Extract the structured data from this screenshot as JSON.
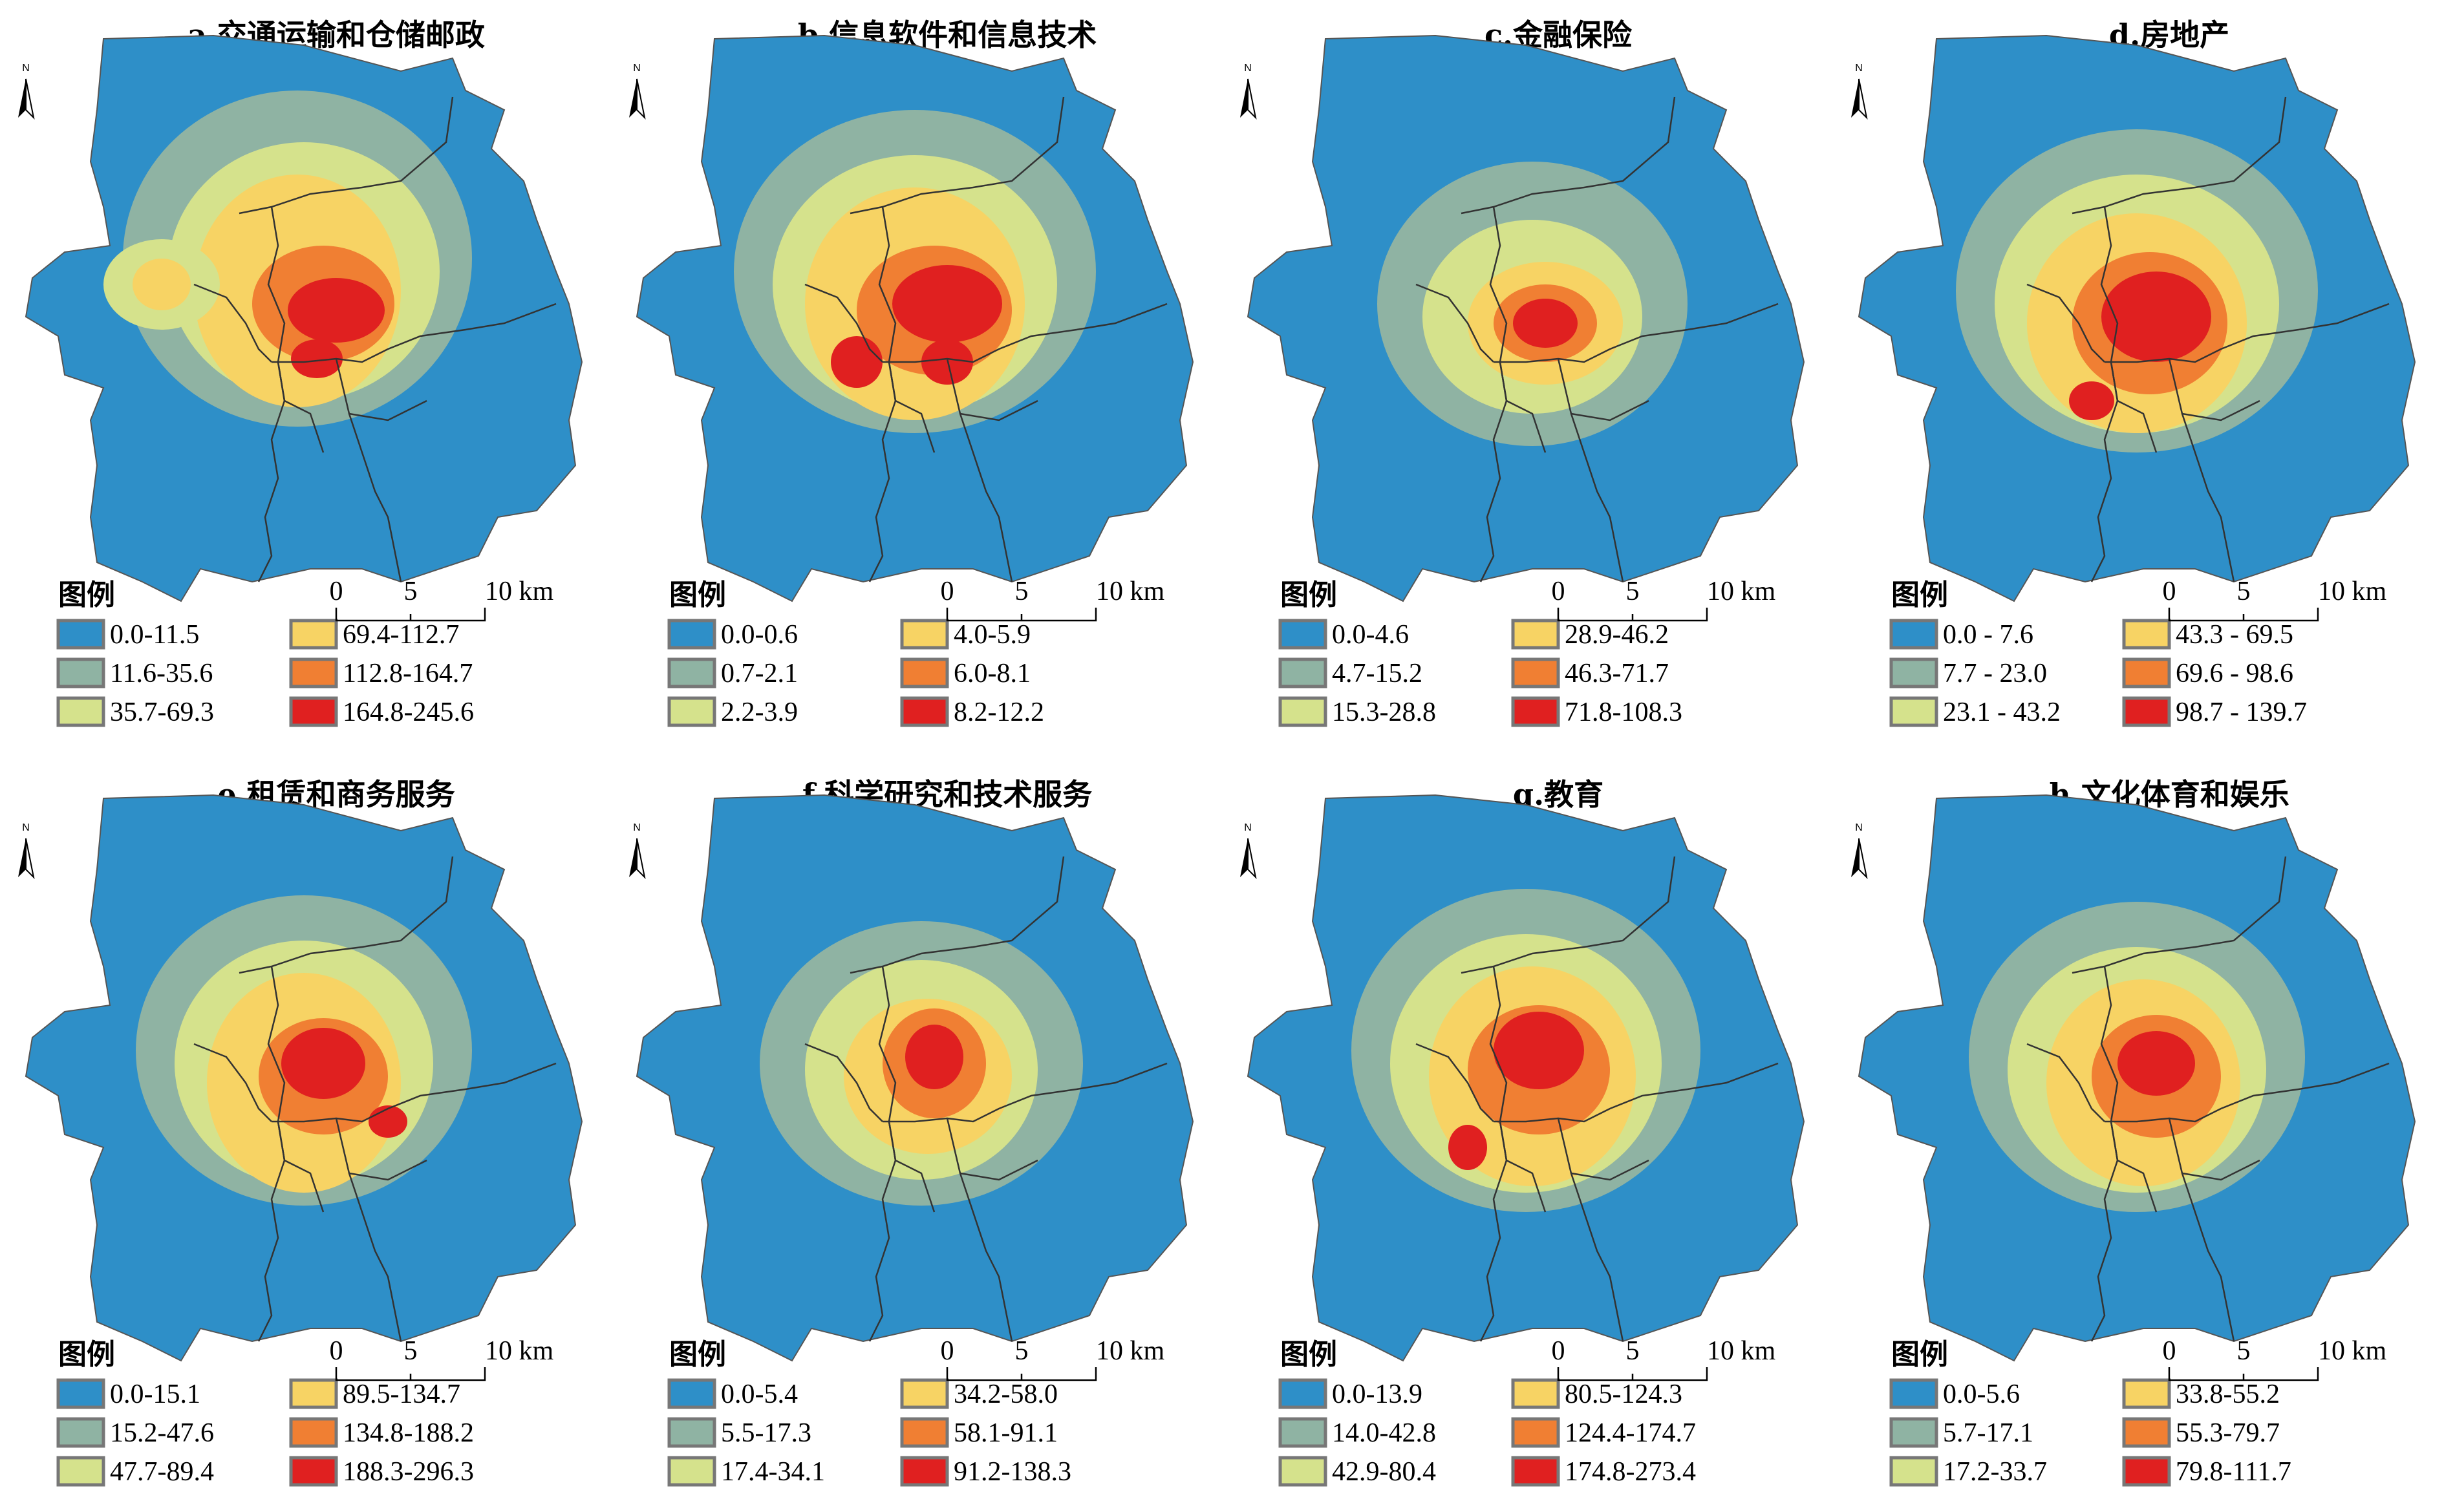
{
  "colors": {
    "class1": "#2e8fc8",
    "class2": "#8fb3a3",
    "class3": "#d5e28c",
    "class4": "#f7d364",
    "class5": "#f07f33",
    "class6": "#e02020",
    "district_lines": "#333333",
    "swatch_border": "#777777"
  },
  "north_label": "N",
  "legend_title": "图例",
  "scale": {
    "labels": [
      "0",
      "5",
      "10 km"
    ]
  },
  "panels": [
    {
      "title": "a.交通运输和仓储邮政",
      "legend": [
        "0.0-11.5",
        "11.6-35.6",
        "35.7-69.3",
        "69.4-112.7",
        "112.8-164.7",
        "164.8-245.6"
      ]
    },
    {
      "title": "b.信息软件和信息技术",
      "legend": [
        "0.0-0.6",
        "0.7-2.1",
        "2.2-3.9",
        "4.0-5.9",
        "6.0-8.1",
        "8.2-12.2"
      ]
    },
    {
      "title": "c.金融保险",
      "legend": [
        "0.0-4.6",
        "4.7-15.2",
        "15.3-28.8",
        "28.9-46.2",
        "46.3-71.7",
        "71.8-108.3"
      ]
    },
    {
      "title": "d.房地产",
      "legend": [
        "0.0 - 7.6",
        "7.7 - 23.0",
        "23.1 - 43.2",
        "43.3 - 69.5",
        "69.6 - 98.6",
        "98.7 - 139.7"
      ]
    },
    {
      "title": "e.租赁和商务服务",
      "legend": [
        "0.0-15.1",
        "15.2-47.6",
        "47.7-89.4",
        "89.5-134.7",
        "134.8-188.2",
        "188.3-296.3"
      ]
    },
    {
      "title": "f.科学研究和技术服务",
      "legend": [
        "0.0-5.4",
        "5.5-17.3",
        "17.4-34.1",
        "34.2-58.0",
        "58.1-91.1",
        "91.2-138.3"
      ]
    },
    {
      "title": "g.教育",
      "legend": [
        "0.0-13.9",
        "14.0-42.8",
        "42.9-80.4",
        "80.5-124.3",
        "124.4-174.7",
        "174.8-273.4"
      ]
    },
    {
      "title": "h.文化体育和娱乐",
      "legend": [
        "0.0-5.6",
        "5.7-17.1",
        "17.2-33.7",
        "33.8-55.2",
        "55.3-79.7",
        "79.8-111.7"
      ]
    }
  ]
}
